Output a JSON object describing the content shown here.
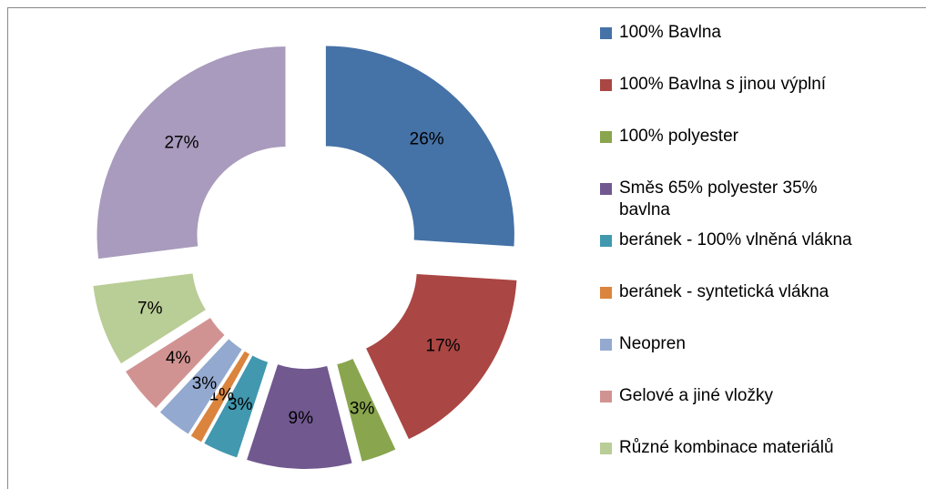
{
  "chart_data": {
    "type": "donut",
    "categories": [
      "100% Bavlna",
      "100% Bavlna s jinou výplní",
      "100% polyester",
      "Směs 65% polyester 35% bavlna",
      "beránek - 100% vlněná vlákna",
      "beránek - syntetická vlákna",
      "Neopren",
      "Gelové a jiné vložky",
      "Různé kombinace materiálů",
      null
    ],
    "values": [
      26,
      17,
      3,
      9,
      3,
      1,
      3,
      4,
      7,
      27
    ],
    "value_labels": [
      "26%",
      "17%",
      "3%",
      "9%",
      "3%",
      "1%",
      "3%",
      "4%",
      "7%",
      "27%"
    ],
    "colors": [
      "#4572a7",
      "#aa4643",
      "#89a54e",
      "#71588f",
      "#4198af",
      "#db843d",
      "#93a9cf",
      "#d19392",
      "#b9cd96",
      "#a99bbd"
    ],
    "legend": "right"
  }
}
